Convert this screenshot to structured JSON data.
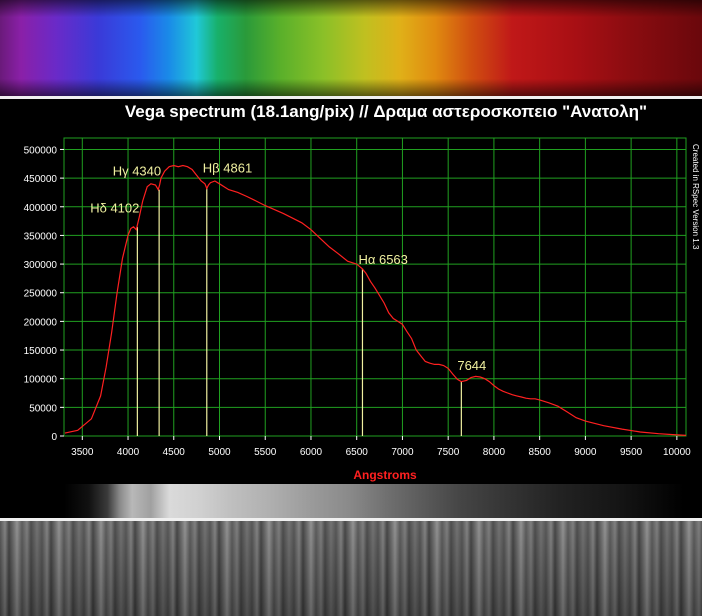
{
  "chart_data": {
    "type": "line",
    "title": "Vega spectrum (18.1ang/pix) // Δραμα αστεροσκοπειο \"Ανατολη\"",
    "xlabel": "Angstroms",
    "ylabel": "",
    "xlim": [
      3300,
      10100
    ],
    "ylim": [
      0,
      520000
    ],
    "x_ticks": [
      3500,
      4000,
      4500,
      5000,
      5500,
      6000,
      6500,
      7000,
      7500,
      8000,
      8500,
      9000,
      9500,
      10000
    ],
    "y_ticks": [
      0,
      50000,
      100000,
      150000,
      200000,
      250000,
      300000,
      350000,
      400000,
      450000,
      500000
    ],
    "grid": true,
    "side_note": "Created in RSpec Version 1.3",
    "series": [
      {
        "color": "#ff2020",
        "x": [
          3310,
          3450,
          3600,
          3700,
          3760,
          3820,
          3880,
          3940,
          4000,
          4030,
          4060,
          4090,
          4100,
          4120,
          4160,
          4210,
          4250,
          4300,
          4330,
          4345,
          4360,
          4400,
          4450,
          4500,
          4550,
          4600,
          4650,
          4700,
          4750,
          4800,
          4840,
          4861,
          4880,
          4900,
          4950,
          5000,
          5100,
          5200,
          5300,
          5400,
          5500,
          5600,
          5700,
          5800,
          5900,
          6000,
          6100,
          6200,
          6300,
          6400,
          6500,
          6560,
          6600,
          6650,
          6700,
          6750,
          6800,
          6850,
          6900,
          6950,
          7000,
          7050,
          7100,
          7150,
          7200,
          7250,
          7300,
          7350,
          7400,
          7450,
          7500,
          7550,
          7600,
          7644,
          7700,
          7750,
          7800,
          7850,
          7900,
          7950,
          8000,
          8050,
          8100,
          8150,
          8200,
          8250,
          8300,
          8350,
          8400,
          8450,
          8500,
          8600,
          8700,
          8800,
          8900,
          9000,
          9200,
          9400,
          9600,
          9800,
          10000,
          10100
        ],
        "y": [
          5000,
          10000,
          30000,
          70000,
          120000,
          180000,
          250000,
          310000,
          350000,
          362000,
          365000,
          360000,
          367000,
          380000,
          410000,
          435000,
          440000,
          438000,
          430000,
          438000,
          450000,
          462000,
          470000,
          472000,
          470000,
          472000,
          470000,
          465000,
          455000,
          445000,
          440000,
          432000,
          438000,
          442000,
          445000,
          440000,
          430000,
          425000,
          418000,
          410000,
          402000,
          395000,
          388000,
          380000,
          372000,
          360000,
          345000,
          330000,
          318000,
          305000,
          300000,
          292000,
          284000,
          270000,
          258000,
          245000,
          232000,
          215000,
          205000,
          200000,
          195000,
          182000,
          170000,
          150000,
          140000,
          130000,
          127000,
          125000,
          125000,
          123000,
          118000,
          108000,
          99000,
          95000,
          97000,
          102000,
          104000,
          103000,
          100000,
          95000,
          88000,
          82000,
          78000,
          75000,
          72000,
          70000,
          68000,
          66000,
          65000,
          65000,
          63000,
          58000,
          52000,
          42000,
          32000,
          26000,
          18000,
          12000,
          7000,
          4000,
          2000,
          1000
        ]
      }
    ],
    "annotations": [
      {
        "label": "Hδ 4102",
        "x": 4102,
        "line_top": 365000,
        "text_y": 390000
      },
      {
        "label": "Hγ 4340",
        "x": 4340,
        "line_top": 430000,
        "text_y": 455000
      },
      {
        "label": "Hβ 4861",
        "x": 4861,
        "line_top": 432000,
        "text_y": 460000
      },
      {
        "label": "Hα 6563",
        "x": 6563,
        "line_top": 292000,
        "text_y": 300000
      },
      {
        "label": "7644",
        "x": 7644,
        "line_top": 95000,
        "text_y": 115000
      }
    ]
  },
  "colors": {
    "background": "#000000",
    "grid": "#20a020",
    "line": "#ff2020",
    "annotation": "#f0f0a0",
    "xlabel": "#ff2020",
    "axis_text": "#ffffff"
  }
}
